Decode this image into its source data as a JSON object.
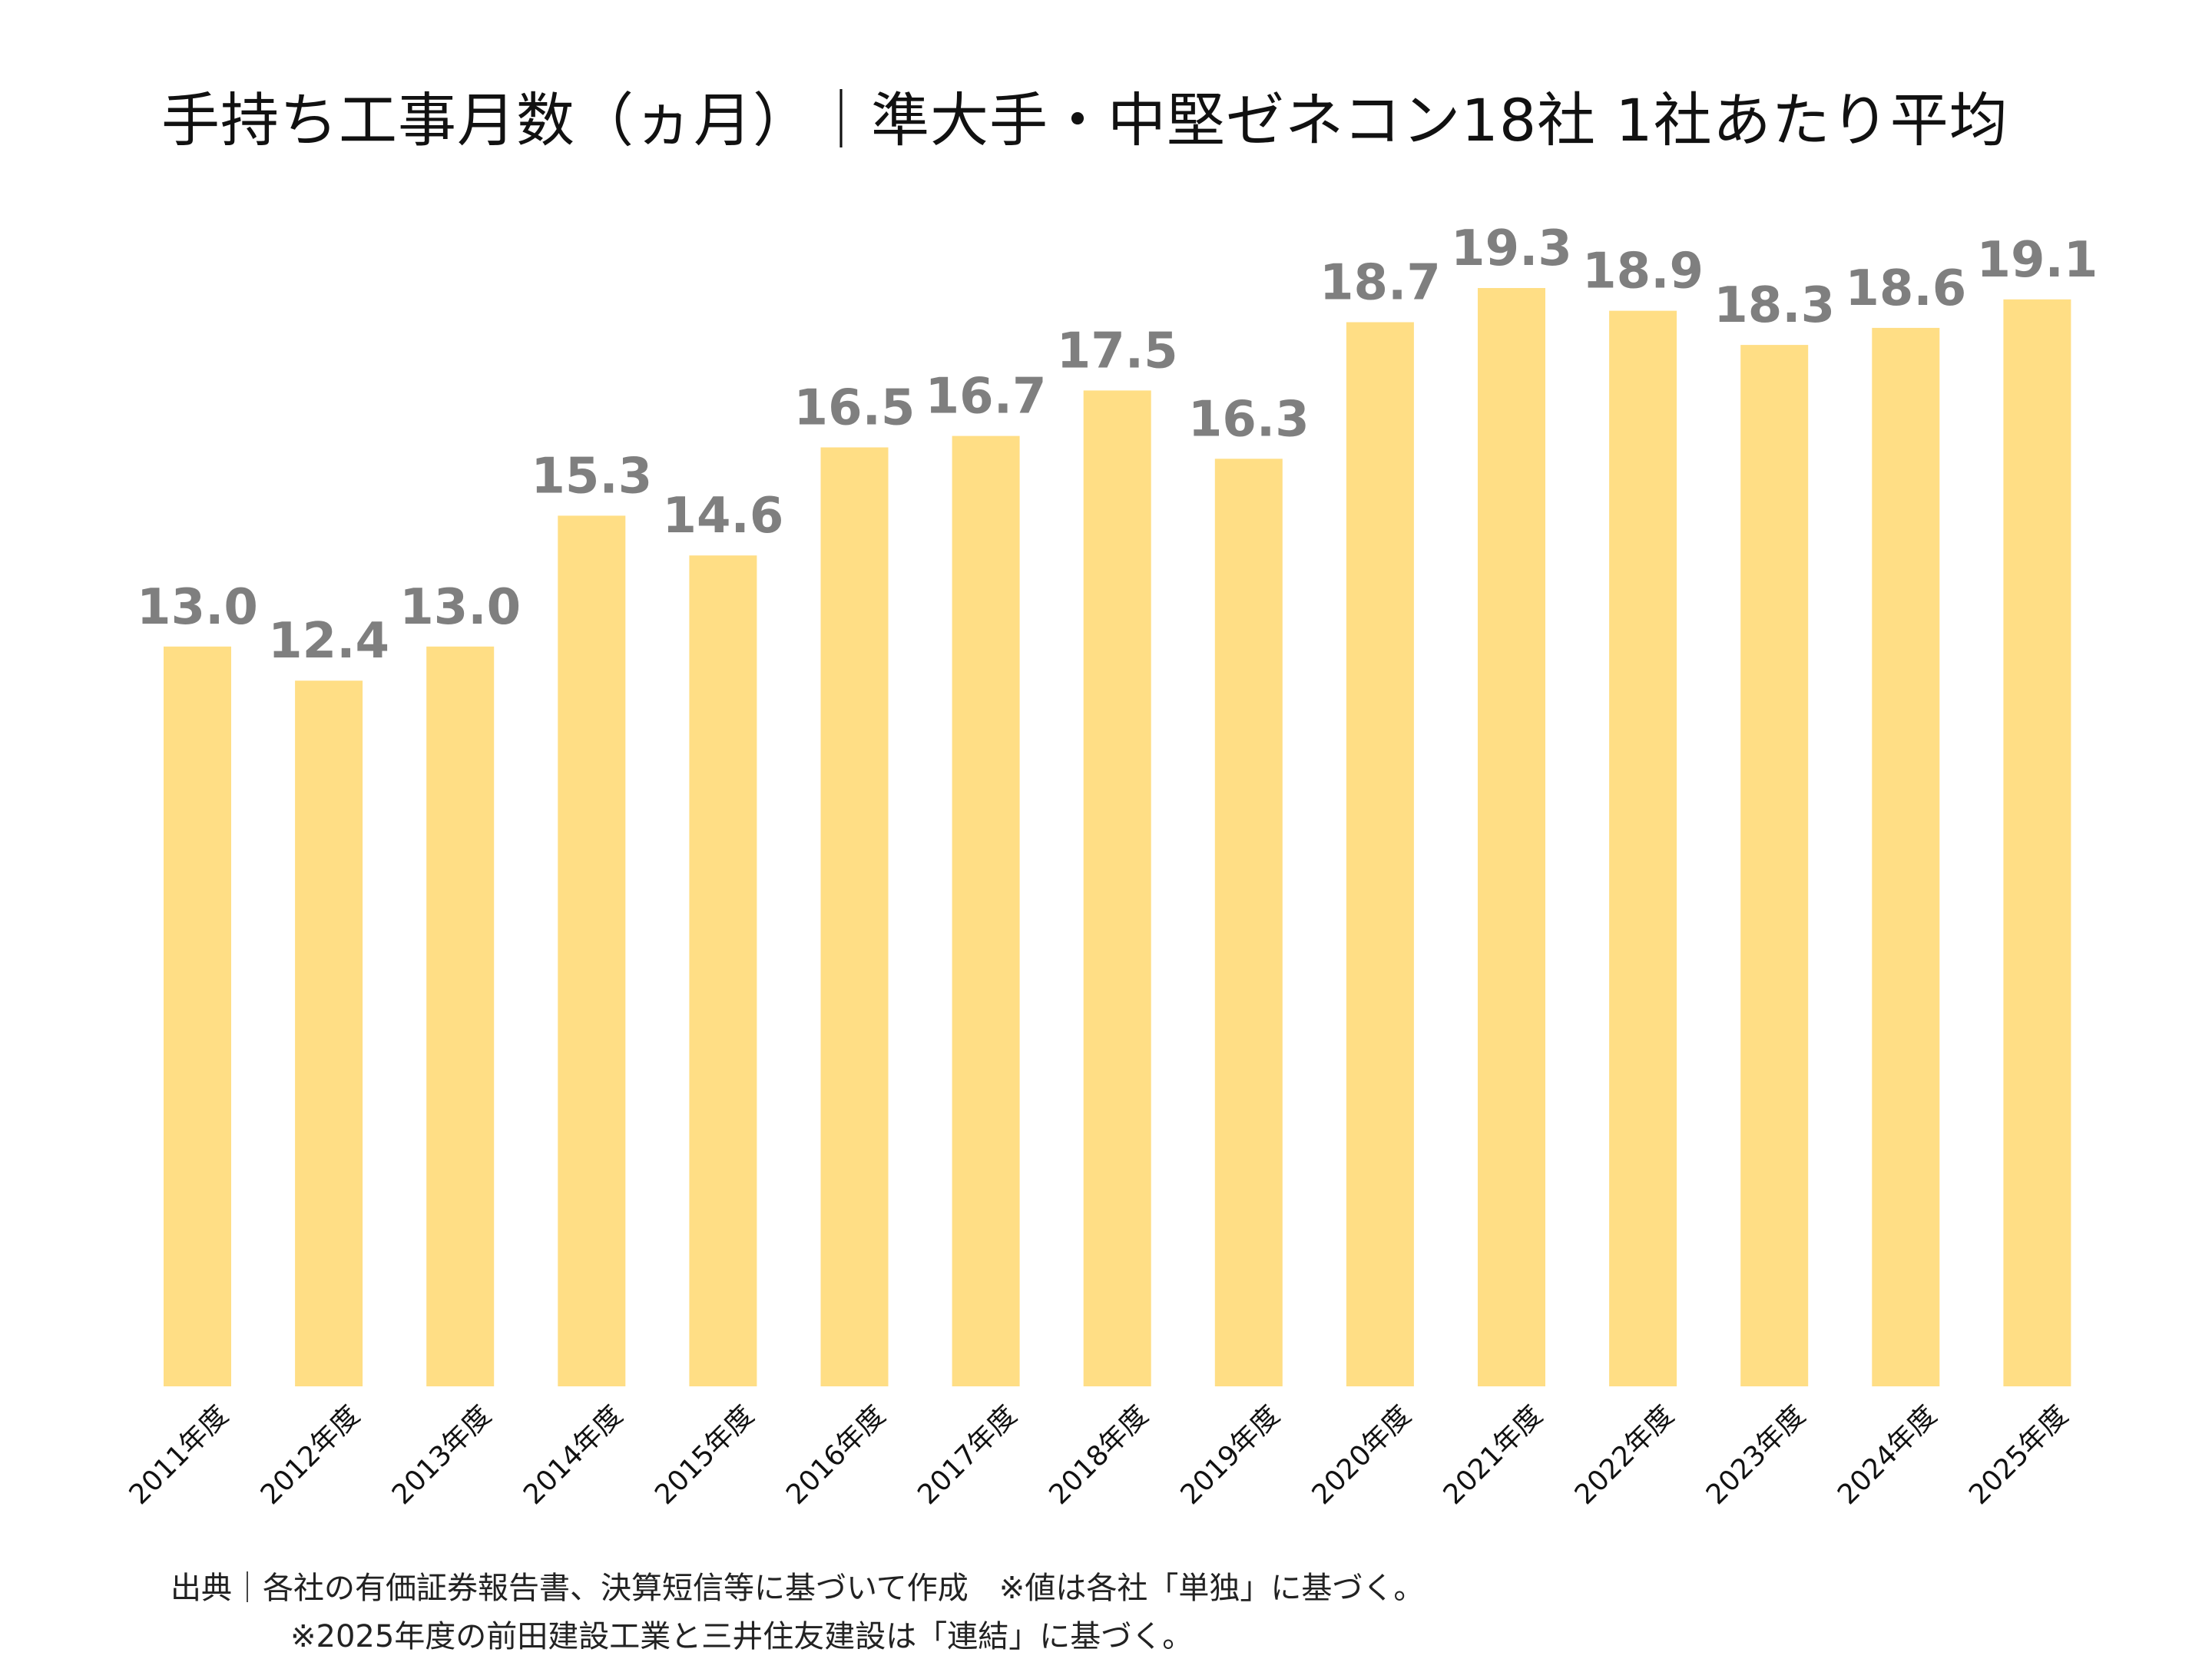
{
  "chart_data": {
    "type": "bar",
    "title": "手持ち工事月数（ヵ月）｜準大手・中堅ゼネコン18社 1社あたり平均",
    "categories": [
      "2011年度",
      "2012年度",
      "2013年度",
      "2014年度",
      "2015年度",
      "2016年度",
      "2017年度",
      "2018年度",
      "2019年度",
      "2020年度",
      "2021年度",
      "2022年度",
      "2023年度",
      "2024年度",
      "2025年度"
    ],
    "values": [
      13.0,
      12.4,
      13.0,
      15.3,
      14.6,
      16.5,
      16.7,
      17.5,
      16.3,
      18.7,
      19.3,
      18.9,
      18.3,
      18.6,
      19.1
    ],
    "value_labels": [
      "13.0",
      "12.4",
      "13.0",
      "15.3",
      "14.6",
      "16.5",
      "16.7",
      "17.5",
      "16.3",
      "18.7",
      "19.3",
      "18.9",
      "18.3",
      "18.6",
      "19.1"
    ],
    "ylim": [
      0,
      19.3
    ],
    "xlabel": "",
    "ylabel": "",
    "grid": false,
    "legend": "none",
    "bar_color": "#FFDE85",
    "label_color": "#7F7F7F"
  },
  "source": {
    "line1": "出典｜各社の有価証券報告書、決算短信等に基づいて作成　※値は各社「単独」に基づく。",
    "line2": "※2025年度の前田建設工業と三井住友建設は「連結」に基づく。"
  }
}
